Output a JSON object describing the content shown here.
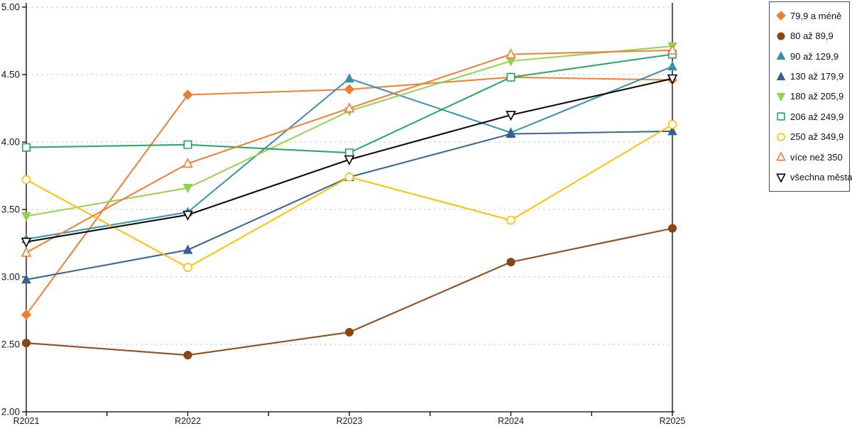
{
  "chart_data": {
    "type": "line",
    "title": "",
    "xlabel": "",
    "ylabel": "",
    "categories": [
      "R2021",
      "R2022",
      "R2023",
      "R2024",
      "R2025"
    ],
    "ylim": [
      2.0,
      5.0
    ],
    "ytick_step": 0.5,
    "ytick_decimals": 2,
    "grid": "horizontal dashed gridlines at each 0.50 step",
    "legend_position": "right",
    "axis_color": "#000000",
    "gridline_color": "#c9c9c9",
    "series": [
      {
        "name": "79,9 a méně",
        "color": "#ED7D31",
        "marker": "diamond",
        "marker_fill": "filled",
        "values": [
          2.72,
          4.35,
          4.39,
          4.48,
          4.46
        ]
      },
      {
        "name": "80 až 89,9",
        "color": "#8B4513",
        "marker": "circle",
        "marker_fill": "filled",
        "values": [
          2.51,
          2.42,
          2.59,
          3.11,
          3.36
        ]
      },
      {
        "name": "90 až 129,9",
        "color": "#3390AD",
        "marker": "triangle-up",
        "marker_fill": "filled",
        "values": [
          3.28,
          3.48,
          4.47,
          4.07,
          4.56
        ]
      },
      {
        "name": "130 až 179,9",
        "color": "#35618F",
        "marker": "triangle-up",
        "marker_fill": "filled",
        "values": [
          2.98,
          3.2,
          3.74,
          4.06,
          4.08
        ]
      },
      {
        "name": "180 až 205,9",
        "color": "#92D050",
        "marker": "triangle-down",
        "marker_fill": "filled",
        "values": [
          3.45,
          3.66,
          4.23,
          4.6,
          4.71
        ]
      },
      {
        "name": "206 až 249,9",
        "color": "#1FA75F",
        "marker": "square",
        "marker_fill": "open",
        "values": [
          3.96,
          3.98,
          3.92,
          4.48,
          4.65
        ]
      },
      {
        "name": "250 až 349,9",
        "color": "#FFC000",
        "marker": "circle",
        "marker_fill": "open",
        "values": [
          3.72,
          3.07,
          3.74,
          3.42,
          4.13
        ]
      },
      {
        "name": "více než 350",
        "color": "#ED7D31",
        "marker": "triangle-up",
        "marker_fill": "open",
        "values": [
          3.18,
          3.84,
          4.25,
          4.65,
          4.68
        ]
      },
      {
        "name": "všechna města",
        "color": "#000000",
        "marker": "triangle-down",
        "marker_fill": "open",
        "values": [
          3.26,
          3.46,
          3.87,
          4.2,
          4.47
        ]
      }
    ]
  }
}
